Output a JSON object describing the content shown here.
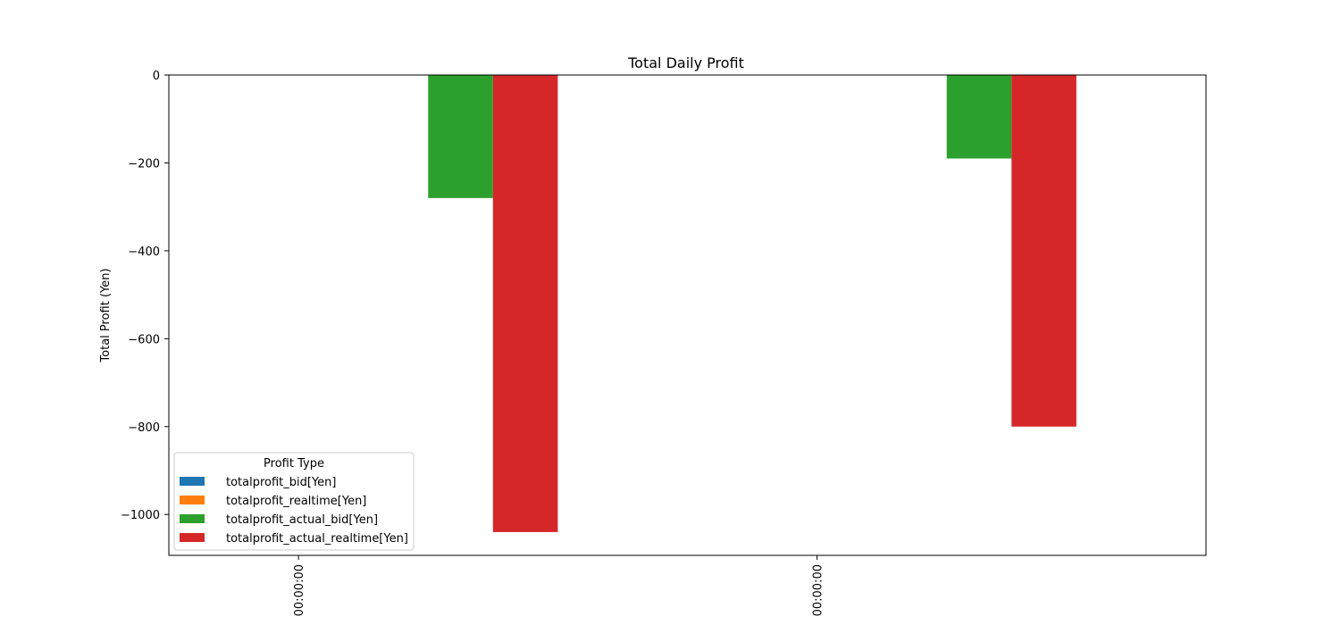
{
  "chart_data": {
    "type": "bar",
    "title": "Total Daily Profit",
    "xlabel": "",
    "ylabel": "Total Profit (Yen)",
    "categories": [
      "00:00:00",
      "00:00:00"
    ],
    "series": [
      {
        "name": "totalprofit_bid[Yen]",
        "color": "#1f77b4",
        "values": [
          0,
          0
        ]
      },
      {
        "name": "totalprofit_realtime[Yen]",
        "color": "#ff7f0e",
        "values": [
          0,
          0
        ]
      },
      {
        "name": "totalprofit_actual_bid[Yen]",
        "color": "#2ca02c",
        "values": [
          -280,
          -190
        ]
      },
      {
        "name": "totalprofit_actual_realtime[Yen]",
        "color": "#d62728",
        "values": [
          -1040,
          -800
        ]
      }
    ],
    "ylim": [
      -1093,
      0
    ],
    "yticks": [
      0,
      -200,
      -400,
      -600,
      -800,
      -1000
    ],
    "ytick_labels": [
      "0",
      "−200",
      "−400",
      "−600",
      "−800",
      "−1000"
    ],
    "grid": false,
    "legend": {
      "title": "Profit Type",
      "placement": "lower-left"
    }
  }
}
